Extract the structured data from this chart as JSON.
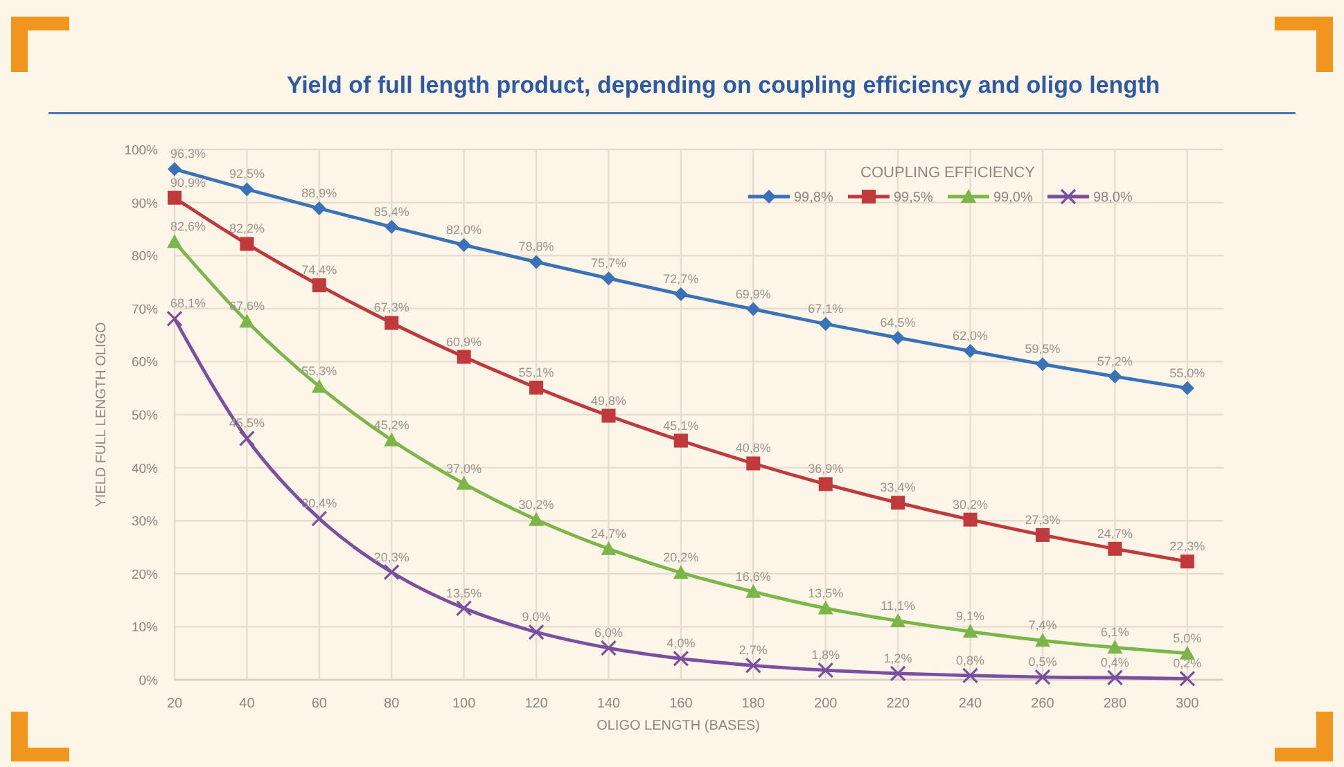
{
  "chart_data": {
    "type": "line",
    "title": "Yield of full length product, depending on coupling efficiency and oligo length",
    "xlabel": "OLIGO LENGTH (BASES)",
    "ylabel": "YIELD FULL LENGTH OLIGO",
    "legend_title": "COUPLING EFFICIENCY",
    "x": [
      20,
      40,
      60,
      80,
      100,
      120,
      140,
      160,
      180,
      200,
      220,
      240,
      260,
      280,
      300
    ],
    "series": [
      {
        "name": "99,8%",
        "color": "#3a72b8",
        "marker": "diamond",
        "values": [
          96.3,
          92.5,
          88.9,
          85.4,
          82.0,
          78.8,
          75.7,
          72.7,
          69.9,
          67.1,
          64.5,
          62.0,
          59.5,
          57.2,
          55.0
        ],
        "value_labels": [
          "96,3%",
          "92,5%",
          "88,9%",
          "85,4%",
          "82,0%",
          "78,8%",
          "75,7%",
          "72,7%",
          "69,9%",
          "67,1%",
          "64,5%",
          "62,0%",
          "59,5%",
          "57,2%",
          "55,0%"
        ]
      },
      {
        "name": "99,5%",
        "color": "#c0393b",
        "marker": "square",
        "values": [
          90.9,
          82.2,
          74.4,
          67.3,
          60.9,
          55.1,
          49.8,
          45.1,
          40.8,
          36.9,
          33.4,
          30.2,
          27.3,
          24.7,
          22.3
        ],
        "value_labels": [
          "90,9%",
          "82,2%",
          "74,4%",
          "67,3%",
          "60,9%",
          "55,1%",
          "49,8%",
          "45,1%",
          "40,8%",
          "36,9%",
          "33,4%",
          "30,2%",
          "27,3%",
          "24,7%",
          "22,3%"
        ]
      },
      {
        "name": "99,0%",
        "color": "#7ab648",
        "marker": "triangle",
        "values": [
          82.6,
          67.6,
          55.3,
          45.2,
          37.0,
          30.2,
          24.7,
          20.2,
          16.6,
          13.5,
          11.1,
          9.1,
          7.4,
          6.1,
          5.0
        ],
        "value_labels": [
          "82,6%",
          "67,6%",
          "55,3%",
          "45,2%",
          "37,0%",
          "30,2%",
          "24,7%",
          "20,2%",
          "16,6%",
          "13,5%",
          "11,1%",
          "9,1%",
          "7,4%",
          "6,1%",
          "5,0%"
        ]
      },
      {
        "name": "98,0%",
        "color": "#7a4ea0",
        "marker": "cross",
        "values": [
          68.1,
          45.5,
          30.4,
          20.3,
          13.5,
          9.0,
          6.0,
          4.0,
          2.7,
          1.8,
          1.2,
          0.8,
          0.5,
          0.4,
          0.2
        ],
        "value_labels": [
          "68,1%",
          "45,5%",
          "30,4%",
          "20,3%",
          "13,5%",
          "9,0%",
          "6,0%",
          "4,0%",
          "2,7%",
          "1,8%",
          "1,2%",
          "0,8%",
          "0,5%",
          "0,4%",
          "0,2%"
        ]
      }
    ],
    "xlim": [
      20,
      310
    ],
    "xticks": [
      20,
      40,
      60,
      80,
      100,
      120,
      140,
      160,
      180,
      200,
      220,
      240,
      260,
      280,
      300
    ],
    "ylim": [
      0,
      100
    ],
    "yticks": [
      {
        "value": 0,
        "label": "0%"
      },
      {
        "value": 10,
        "label": "10%"
      },
      {
        "value": 20,
        "label": "20%"
      },
      {
        "value": 30,
        "label": "30%"
      },
      {
        "value": 40,
        "label": "40%"
      },
      {
        "value": 50,
        "label": "50%"
      },
      {
        "value": 60,
        "label": "60%"
      },
      {
        "value": 70,
        "label": "70%"
      },
      {
        "value": 80,
        "label": "80%"
      },
      {
        "value": 90,
        "label": "90%"
      },
      {
        "value": 100,
        "label": "100%"
      }
    ],
    "grid": true,
    "legend": "top right"
  }
}
